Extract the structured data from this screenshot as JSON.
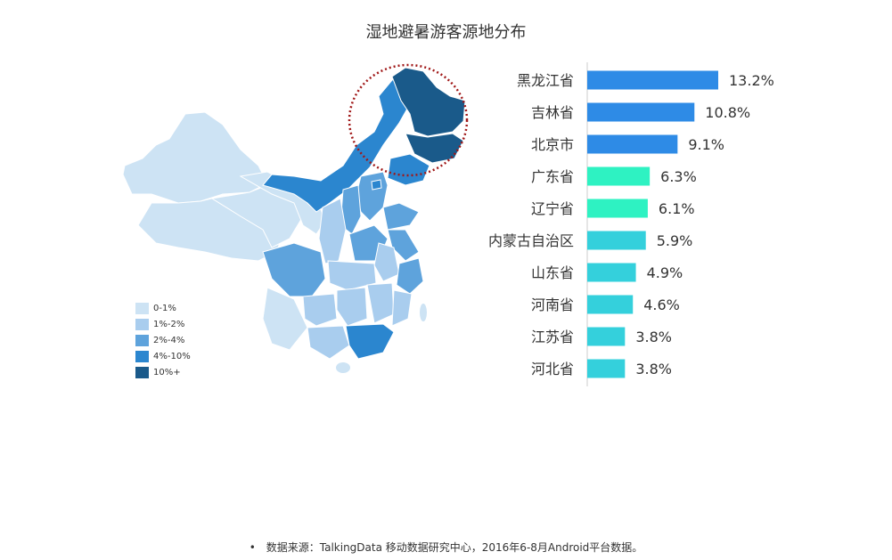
{
  "title": "湿地避暑游客源地分布",
  "legend": {
    "items": [
      {
        "label": "0-1%",
        "color": "#cde3f4"
      },
      {
        "label": "1%-2%",
        "color": "#a9cdee"
      },
      {
        "label": "2%-4%",
        "color": "#5ea3dc"
      },
      {
        "label": "4%-10%",
        "color": "#2b86cf"
      },
      {
        "label": "10%+",
        "color": "#1a5a8a"
      }
    ]
  },
  "chart_data": {
    "type": "bar",
    "orientation": "horizontal",
    "categories": [
      "黑龙江省",
      "吉林省",
      "北京市",
      "广东省",
      "辽宁省",
      "内蒙古自治区",
      "山东省",
      "河南省",
      "江苏省",
      "河北省"
    ],
    "values": [
      13.2,
      10.8,
      9.1,
      6.3,
      6.1,
      5.9,
      4.9,
      4.6,
      3.8,
      3.8
    ],
    "labels": [
      "13.2%",
      "10.8%",
      "9.1%",
      "6.3%",
      "6.1%",
      "5.9%",
      "4.9%",
      "4.6%",
      "3.8%",
      "3.8%"
    ],
    "colors": [
      "#2e8be6",
      "#2e8be6",
      "#2e8be6",
      "#2ef2c2",
      "#2ef2c2",
      "#34d0dc",
      "#34d0dc",
      "#34d0dc",
      "#34d0dc",
      "#34d0dc"
    ],
    "unit": "%",
    "title": "",
    "xlabel": "",
    "ylabel": ""
  },
  "footer": {
    "bullet": "•",
    "text": "数据来源：TalkingData 移动数据研究中心，2016年6-8月Android平台数据。"
  }
}
